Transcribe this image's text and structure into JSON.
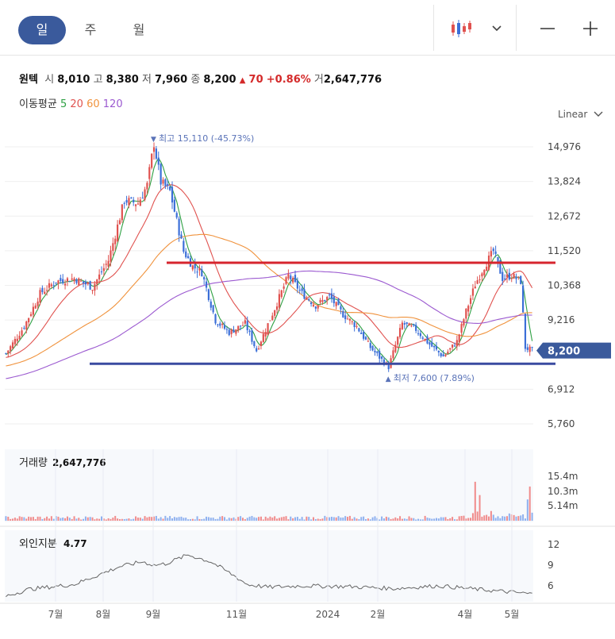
{
  "tabs": [
    {
      "label": "일",
      "active": true
    },
    {
      "label": "주",
      "active": false
    },
    {
      "label": "월",
      "active": false
    }
  ],
  "toolbar": {
    "chart_type_icon": "candlestick-icon",
    "dropdown_icon": "chevron-down-icon",
    "zoom_out_icon": "minus-icon",
    "zoom_in_icon": "plus-icon"
  },
  "info": {
    "name": "원텍",
    "open_label": "시",
    "open": "8,010",
    "high_label": "고",
    "high": "8,380",
    "low_label": "저",
    "low": "7,960",
    "close_label": "종",
    "close": "8,200",
    "change_arrow": "▲",
    "change": "70",
    "change_pct": "+0.86%",
    "volume_label": "거",
    "volume": "2,647,776"
  },
  "ma": {
    "label": "이동평균",
    "periods": [
      "5",
      "20",
      "60",
      "120"
    ],
    "colors": [
      "#2ea043",
      "#e0524f",
      "#f0923c",
      "#9b59d0"
    ]
  },
  "scale": "Linear",
  "colors": {
    "up": "#e0524f",
    "down": "#3b6fd8",
    "resistance": "#d6252e",
    "support": "#3a4aa0",
    "price_tag": "#3a5a9c",
    "accent": "#3a5a9c"
  },
  "chart_data": [
    {
      "type": "candlestick",
      "y_ticks": [
        "14,976",
        "13,824",
        "12,672",
        "11,520",
        "10,368",
        "9,216",
        "6,912",
        "5,760"
      ],
      "ylim": [
        5500,
        15400
      ],
      "x_ticks": [
        "7월",
        "8월",
        "9월",
        "11월",
        "2024",
        "2월",
        "4월",
        "5월"
      ],
      "current_price": "8,200",
      "annotations": {
        "high": {
          "arrow": "▼",
          "label": "최고",
          "value": "15,110",
          "pct": "(-45.73%)"
        },
        "low": {
          "arrow": "▲",
          "label": "최저",
          "value": "7,600",
          "pct": "(7.89%)"
        }
      },
      "resistance_level": 11120,
      "support_level": 7760,
      "anchors": [
        [
          0,
          8100
        ],
        [
          8,
          9000
        ],
        [
          15,
          10100
        ],
        [
          22,
          10500
        ],
        [
          30,
          10600
        ],
        [
          38,
          10300
        ],
        [
          45,
          11200
        ],
        [
          52,
          13200
        ],
        [
          58,
          13100
        ],
        [
          62,
          13700
        ],
        [
          65,
          15100
        ],
        [
          68,
          13800
        ],
        [
          72,
          13500
        ],
        [
          78,
          11500
        ],
        [
          82,
          11000
        ],
        [
          86,
          10800
        ],
        [
          92,
          9200
        ],
        [
          98,
          8800
        ],
        [
          105,
          9100
        ],
        [
          110,
          8200
        ],
        [
          118,
          9600
        ],
        [
          124,
          10700
        ],
        [
          130,
          10100
        ],
        [
          136,
          9700
        ],
        [
          142,
          10000
        ],
        [
          148,
          9400
        ],
        [
          154,
          9000
        ],
        [
          160,
          8300
        ],
        [
          168,
          7650
        ],
        [
          174,
          9100
        ],
        [
          180,
          8900
        ],
        [
          186,
          8400
        ],
        [
          192,
          8000
        ],
        [
          198,
          8500
        ],
        [
          202,
          9500
        ],
        [
          206,
          10400
        ],
        [
          210,
          11000
        ],
        [
          214,
          11500
        ],
        [
          218,
          10600
        ],
        [
          222,
          10700
        ],
        [
          226,
          10500
        ],
        [
          228,
          8300
        ],
        [
          231,
          8200
        ]
      ]
    },
    {
      "type": "bar",
      "title": "거래량",
      "value": "2,647,776",
      "y_ticks": [
        "15.4m",
        "10.3m",
        "5.14m"
      ]
    },
    {
      "type": "line",
      "title": "외인지분",
      "value": "4.77",
      "y_ticks": [
        "12",
        "9",
        "6"
      ],
      "points": [
        [
          0,
          4.5
        ],
        [
          10,
          5.5
        ],
        [
          30,
          6.2
        ],
        [
          40,
          7.5
        ],
        [
          50,
          8.8
        ],
        [
          60,
          9.5
        ],
        [
          65,
          9.0
        ],
        [
          70,
          9.2
        ],
        [
          80,
          10.5
        ],
        [
          90,
          9.5
        ],
        [
          100,
          7.5
        ],
        [
          106,
          6.2
        ],
        [
          115,
          5.8
        ],
        [
          130,
          6.0
        ],
        [
          150,
          5.9
        ],
        [
          170,
          5.6
        ],
        [
          190,
          6.0
        ],
        [
          210,
          5.4
        ],
        [
          225,
          5.0
        ],
        [
          231,
          4.8
        ]
      ]
    }
  ]
}
